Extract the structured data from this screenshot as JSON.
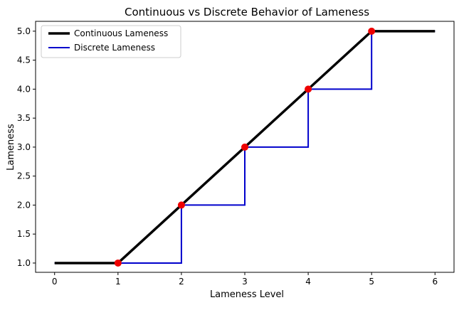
{
  "chart_data": {
    "type": "line",
    "title": "Continuous vs Discrete Behavior of Lameness",
    "xlabel": "Lameness Level",
    "ylabel": "Lameness",
    "xlim": [
      -0.3,
      6.3
    ],
    "ylim": [
      0.84,
      5.17
    ],
    "x_ticks": [
      0,
      1,
      2,
      3,
      4,
      5,
      6
    ],
    "x_tick_labels": [
      "0",
      "1",
      "2",
      "3",
      "4",
      "5",
      "6"
    ],
    "y_ticks": [
      1.0,
      1.5,
      2.0,
      2.5,
      3.0,
      3.5,
      4.0,
      4.5,
      5.0
    ],
    "y_tick_labels": [
      "1.0",
      "1.5",
      "2.0",
      "2.5",
      "3.0",
      "3.5",
      "4.0",
      "4.5",
      "5.0"
    ],
    "grid": false,
    "legend_position": "top-left",
    "series": [
      {
        "name": "Continuous Lameness",
        "color": "#000000",
        "style": "line",
        "points": [
          [
            0,
            1
          ],
          [
            1,
            1
          ],
          [
            2,
            2
          ],
          [
            3,
            3
          ],
          [
            4,
            4
          ],
          [
            5,
            5
          ],
          [
            6,
            5
          ]
        ]
      },
      {
        "name": "Discrete Lameness",
        "color": "#0000cc",
        "style": "step",
        "points": [
          [
            0,
            1
          ],
          [
            2,
            1
          ],
          [
            2,
            2
          ],
          [
            3,
            2
          ],
          [
            3,
            3
          ],
          [
            4,
            3
          ],
          [
            4,
            4
          ],
          [
            5,
            4
          ],
          [
            5,
            5
          ],
          [
            6,
            5
          ]
        ]
      }
    ],
    "markers": {
      "color": "#ee0000",
      "points": [
        [
          1,
          1
        ],
        [
          2,
          2
        ],
        [
          3,
          3
        ],
        [
          4,
          4
        ],
        [
          5,
          5
        ]
      ]
    }
  }
}
